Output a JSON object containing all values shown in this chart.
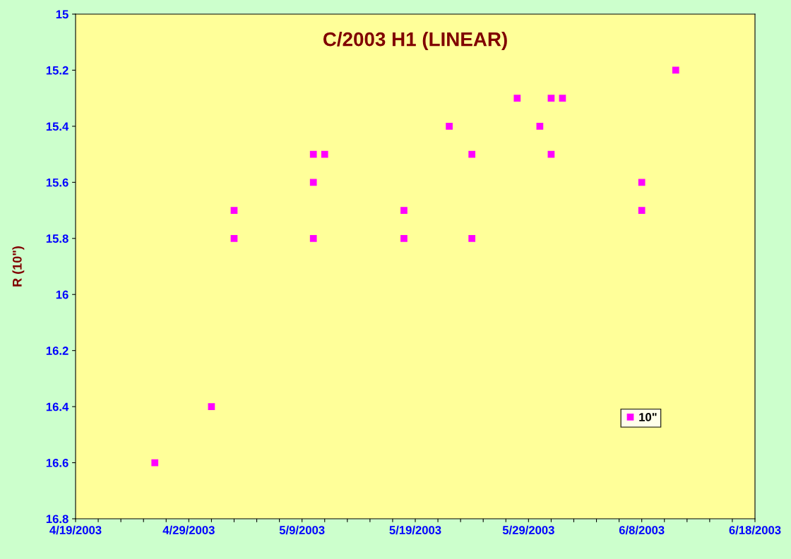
{
  "chart_data": {
    "type": "scatter",
    "title": "C/2003 H1 (LINEAR)",
    "ylabel": "R (10\")",
    "series": [
      {
        "name": "10\"",
        "color": "#ff00ff",
        "x": [
          "2003-04-26",
          "2003-05-01",
          "2003-05-03",
          "2003-05-03",
          "2003-05-10",
          "2003-05-10",
          "2003-05-10",
          "2003-05-11",
          "2003-05-18",
          "2003-05-18",
          "2003-05-22",
          "2003-05-24",
          "2003-05-24",
          "2003-05-28",
          "2003-05-30",
          "2003-05-31",
          "2003-05-31",
          "2003-06-01",
          "2003-06-08",
          "2003-06-08",
          "2003-06-11"
        ],
        "values": [
          16.6,
          16.4,
          15.7,
          15.8,
          15.6,
          15.8,
          15.5,
          15.5,
          15.7,
          15.8,
          15.4,
          15.5,
          15.8,
          15.3,
          15.4,
          15.3,
          15.5,
          15.3,
          15.6,
          15.7,
          15.2
        ]
      }
    ],
    "xlim": [
      "2003-04-19",
      "2003-06-18"
    ],
    "xticks": [
      {
        "value": "2003-04-19",
        "label": "4/19/2003"
      },
      {
        "value": "2003-04-21",
        "label": null
      },
      {
        "value": "2003-04-23",
        "label": null
      },
      {
        "value": "2003-04-25",
        "label": null
      },
      {
        "value": "2003-04-27",
        "label": null
      },
      {
        "value": "2003-04-29",
        "label": "4/29/2003"
      },
      {
        "value": "2003-05-01",
        "label": null
      },
      {
        "value": "2003-05-03",
        "label": null
      },
      {
        "value": "2003-05-05",
        "label": null
      },
      {
        "value": "2003-05-07",
        "label": null
      },
      {
        "value": "2003-05-09",
        "label": "5/9/2003"
      },
      {
        "value": "2003-05-11",
        "label": null
      },
      {
        "value": "2003-05-13",
        "label": null
      },
      {
        "value": "2003-05-15",
        "label": null
      },
      {
        "value": "2003-05-17",
        "label": null
      },
      {
        "value": "2003-05-19",
        "label": "5/19/2003"
      },
      {
        "value": "2003-05-21",
        "label": null
      },
      {
        "value": "2003-05-23",
        "label": null
      },
      {
        "value": "2003-05-25",
        "label": null
      },
      {
        "value": "2003-05-27",
        "label": null
      },
      {
        "value": "2003-05-29",
        "label": "5/29/2003"
      },
      {
        "value": "2003-05-31",
        "label": null
      },
      {
        "value": "2003-06-02",
        "label": null
      },
      {
        "value": "2003-06-04",
        "label": null
      },
      {
        "value": "2003-06-06",
        "label": null
      },
      {
        "value": "2003-06-08",
        "label": "6/8/2003"
      },
      {
        "value": "2003-06-10",
        "label": null
      },
      {
        "value": "2003-06-12",
        "label": null
      },
      {
        "value": "2003-06-14",
        "label": null
      },
      {
        "value": "2003-06-16",
        "label": null
      },
      {
        "value": "2003-06-18",
        "label": "6/18/2003"
      }
    ],
    "ylim": [
      16.8,
      15
    ],
    "yticks": [
      15,
      15.2,
      15.4,
      15.6,
      15.8,
      16,
      16.2,
      16.4,
      16.6,
      16.8
    ],
    "marker": "square",
    "grid": false,
    "legend": "bottom right"
  }
}
